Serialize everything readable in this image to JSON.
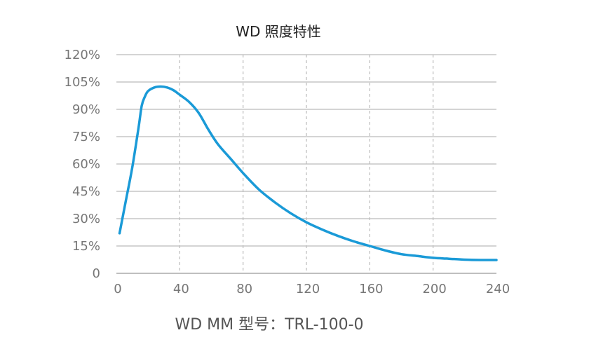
{
  "chart_data": {
    "type": "line",
    "title": "WD 照度特性",
    "subtitle": "WD MM 型号：TRL-100-0",
    "xlabel": "",
    "ylabel": "",
    "xlim": [
      0,
      240
    ],
    "ylim": [
      0,
      120
    ],
    "x_ticks": [
      "0",
      "40",
      "80",
      "120",
      "160",
      "200",
      "240"
    ],
    "y_ticks": [
      "0",
      "15%",
      "30%",
      "45%",
      "60%",
      "75%",
      "90%",
      "105%",
      "120%"
    ],
    "grid": {
      "horizontal": "solid",
      "vertical": "dashed"
    },
    "legend": "none",
    "colors": {
      "line": "#1a9ad7",
      "grid": "#bbbbbb",
      "axis": "#999999",
      "text": "#777777"
    },
    "series": [
      {
        "x": [
          2,
          6,
          10,
          14,
          16,
          18,
          20,
          24,
          28,
          32,
          36,
          40,
          46,
          52,
          58,
          64,
          72,
          80,
          90,
          100,
          110,
          120,
          130,
          140,
          150,
          160,
          170,
          180,
          190,
          200,
          210,
          220,
          230,
          240
        ],
        "values": [
          22,
          40,
          58,
          80,
          92,
          97,
          100,
          102,
          102.5,
          102,
          100.5,
          98,
          94,
          88,
          79,
          71,
          63,
          55,
          46,
          39,
          33,
          28,
          24,
          20.5,
          17.5,
          15,
          12.5,
          10.5,
          9.5,
          8.5,
          8,
          7.5,
          7.3,
          7.3
        ]
      }
    ]
  }
}
